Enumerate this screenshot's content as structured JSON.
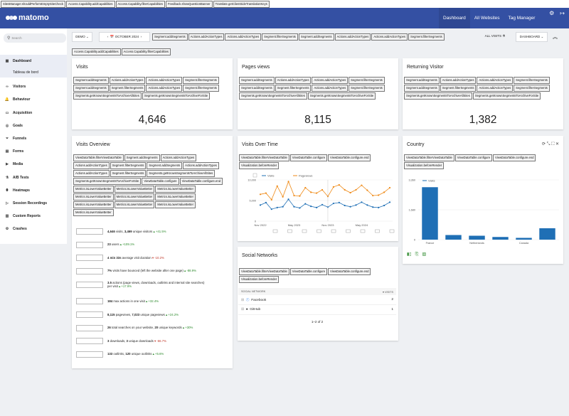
{
  "hook_bar": [
    "SitesManager.shouldPerformEmptySiteCheck",
    "Access.Capability.addCapabilities",
    "Access.Capability.filterCapabilities",
    "Feedback.showQuestionBanner",
    "Translate.getClientSideTranslationKeys"
  ],
  "brand": "matomo",
  "topnav": {
    "dashboard": "Dashboard",
    "all_websites": "All Websites",
    "tag_manager": "Tag Manager"
  },
  "search_placeholder": "Search",
  "menu": [
    {
      "label": "Dashboard",
      "icon": "dashboard-icon",
      "glyph": "▦"
    },
    {
      "label": "Visitors",
      "icon": "visitors-icon",
      "glyph": "∞"
    },
    {
      "label": "Behaviour",
      "icon": "behaviour-icon",
      "glyph": "🔔"
    },
    {
      "label": "Acquisition",
      "icon": "acquisition-icon",
      "glyph": "▭"
    },
    {
      "label": "Goals",
      "icon": "goals-icon",
      "glyph": "◎"
    },
    {
      "label": "Funnels",
      "icon": "funnels-icon",
      "glyph": "⏷"
    },
    {
      "label": "Forms",
      "icon": "forms-icon",
      "glyph": "▤"
    },
    {
      "label": "Media",
      "icon": "media-icon",
      "glyph": "▶"
    },
    {
      "label": "A/B Tests",
      "icon": "ab-tests-icon",
      "glyph": "⚗"
    },
    {
      "label": "Heatmaps",
      "icon": "heatmaps-icon",
      "glyph": "⬮"
    },
    {
      "label": "Session Recordings",
      "icon": "session-recordings-icon",
      "glyph": "▷"
    },
    {
      "label": "Custom Reports",
      "icon": "custom-reports-icon",
      "glyph": "▥"
    },
    {
      "label": "Crashes",
      "icon": "crashes-icon",
      "glyph": "⚙"
    }
  ],
  "submenu_label": "Tableau de bord",
  "controls": {
    "site": "DEMO",
    "period": "OCTOBER 2024",
    "all_visits": "ALL VISITS",
    "dashboard": "DASHBOARD",
    "hooks": [
      "Segment.addSegments",
      "Actions.addActionTypes",
      "Actions.addActionTypes",
      "Segment.filterSegments",
      "Segment.addSegments",
      "Actions.addActionTypes",
      "Actions.addActionTypes",
      "Segment.filterSegments"
    ]
  },
  "hook_row2": [
    "Access.Capability.addCapabilities",
    "Access.Capability.filterCapabilities"
  ],
  "kpi_hooks": [
    "Segment.addSegments",
    "Actions.addActionTypes",
    "Actions.addActionTypes",
    "Segment.filterSegments",
    "Segment.addSegments",
    "Segment.filterSegments",
    "Actions.addActionTypes",
    "Segment.filterSegments",
    "Segments.getKnownSegmentsToArchiveAllSites",
    "Segments.getKnownSegmentsToArchiveForSite"
  ],
  "visits": {
    "title": "Visits",
    "value": "4,646"
  },
  "pageviews": {
    "title": "Pages views",
    "value": "8,115"
  },
  "returning": {
    "title": "Returning Visitor",
    "value": "1,382"
  },
  "overview": {
    "title": "Visits Overview",
    "hooks": [
      "ViewDataTable.filterViewDataTable",
      "Segment.addSegments",
      "Actions.addActionTypes",
      "Actions.addActionTypes",
      "Segment.filterSegments",
      "Segment.addSegments",
      "Actions.addActionTypes",
      "Actions.addActionTypes",
      "Segment.filterSegments",
      "Segments.getKnownSegmentsToArchiveAllSites",
      "Segments.getKnownSegmentsToArchiveForSite",
      "ViewDataTable.configure",
      "ViewDataTable.configure.end",
      "Metrics.isLowerValueBetter",
      "Metrics.isLowerValueBetter",
      "Metrics.isLowerValueBetter",
      "Metrics.isLowerValueBetter",
      "Metrics.isLowerValueBetter",
      "Metrics.isLowerValueBetter",
      "Metrics.isLowerValueBetter",
      "Metrics.isLowerValueBetter",
      "Metrics.isLowerValueBetter",
      "Metrics.isLowerValueBetter"
    ],
    "rows": [
      {
        "b1": "4,646",
        "t1": " visits, ",
        "b2": "3,469",
        "t2": " unique visitors",
        "change": "+41.5%",
        "dir": "pos"
      },
      {
        "b1": "23",
        "t1": " users",
        "b2": "",
        "t2": "",
        "change": "+109.1%",
        "dir": "pos"
      },
      {
        "b1": "4 min 33s",
        "t1": " average visit duration",
        "b2": "",
        "t2": "",
        "change": "-10.2%",
        "dir": "neg"
      },
      {
        "b1": "7%",
        "t1": " visits have bounced (left the website after one page)",
        "b2": "",
        "t2": "",
        "change": "-88.9%",
        "dir": "pos"
      },
      {
        "b1": "3.5",
        "t1": " actions (page views, downloads, outlinks and internal site searches)",
        "b2": "",
        "t2": "per visit",
        "change": "+17.9%",
        "dir": "pos",
        "two": true
      },
      {
        "b1": "184",
        "t1": " max actions in one visit",
        "b2": "",
        "t2": "",
        "change": "+32.4%",
        "dir": "pos"
      },
      {
        "b1": "8,115",
        "t1": " pageviews, ",
        "b2": "7,023",
        "t2": " unique pageviews",
        "change": "+24.2%",
        "dir": "pos"
      },
      {
        "b1": "26",
        "t1": " total searches on your website, ",
        "b2": "20",
        "t2": " unique keywords",
        "change": "+30%",
        "dir": "pos"
      },
      {
        "b1": "3",
        "t1": " downloads, ",
        "b2": "3",
        "t2": " unique downloads",
        "change": "-66.7%",
        "dir": "neg"
      },
      {
        "b1": "133",
        "t1": " outlinks, ",
        "b2": "120",
        "t2": " unique outlinks",
        "change": "+5.6%",
        "dir": "pos"
      }
    ]
  },
  "vot": {
    "title": "Visits Over Time",
    "hooks": [
      "ViewDataTable.filterViewDataTable",
      "ViewDataTable.configure",
      "ViewDataTable.configure.end",
      "Visualization.beforeRender"
    ],
    "chart_data": {
      "type": "line",
      "x": [
        "Nov 2022",
        "Dec 2022",
        "Jan 2023",
        "Feb 2023",
        "Mar 2023",
        "Apr 2023",
        "May 2023",
        "Jun 2023",
        "Jul 2023",
        "Aug 2023",
        "Sep 2023",
        "Oct 2023",
        "Nov 2023",
        "Dec 2023",
        "Jan 2024",
        "Feb 2024",
        "Mar 2024",
        "Apr 2024",
        "May 2024",
        "Jun 2024",
        "Jul 2024",
        "Aug 2024",
        "Sep 2024",
        "Oct 2024"
      ],
      "x_ticks": [
        "Nov 2022",
        "May 2023",
        "Nov 2023",
        "May 2024"
      ],
      "y_ticks": [
        "0",
        "5,000",
        "10,000"
      ],
      "ylim": [
        0,
        10000
      ],
      "series": [
        {
          "name": "Visits",
          "color": "#1f6fb5",
          "values": [
            3900,
            4500,
            2900,
            3300,
            3500,
            5300,
            3500,
            3200,
            4200,
            3600,
            3300,
            4000,
            3400,
            4300,
            4500,
            3800,
            3500,
            3900,
            4600,
            3900,
            3400,
            3300,
            3800,
            4600
          ]
        },
        {
          "name": "Pageviews",
          "color": "#ef8a17",
          "values": [
            6500,
            6800,
            5200,
            8500,
            5900,
            9600,
            6200,
            6100,
            8100,
            7000,
            6800,
            7600,
            6000,
            8300,
            8800,
            7600,
            6900,
            7600,
            8700,
            7500,
            6200,
            6300,
            7000,
            8100
          ]
        }
      ]
    }
  },
  "country": {
    "title": "Country",
    "hooks": [
      "ViewDataTable.filterViewDataTable",
      "ViewDataTable.configure",
      "ViewDataTable.configure.end",
      "Visualization.beforeRender"
    ],
    "chart_data": {
      "type": "bar",
      "series_name": "Visits",
      "categories": [
        "France",
        "",
        "Netherlands",
        "",
        "Canada",
        ""
      ],
      "values": [
        2950,
        260,
        220,
        150,
        100,
        640
      ],
      "y_ticks": [
        "0",
        "1,680",
        "3,360"
      ],
      "ylim": [
        0,
        3360
      ]
    }
  },
  "social": {
    "title": "Social Networks",
    "hooks": [
      "ViewDataTable.filterViewDataTable",
      "ViewDataTable.configure",
      "ViewDataTable.configure.end",
      "Visualization.beforeRender"
    ],
    "col_name": "SOCIAL NETWORK",
    "col_visits": "VISITS",
    "rows": [
      {
        "name": "Facebook",
        "visits": "2"
      },
      {
        "name": "GitHub",
        "visits": "1"
      }
    ],
    "pagination": "1–2 of 2"
  }
}
